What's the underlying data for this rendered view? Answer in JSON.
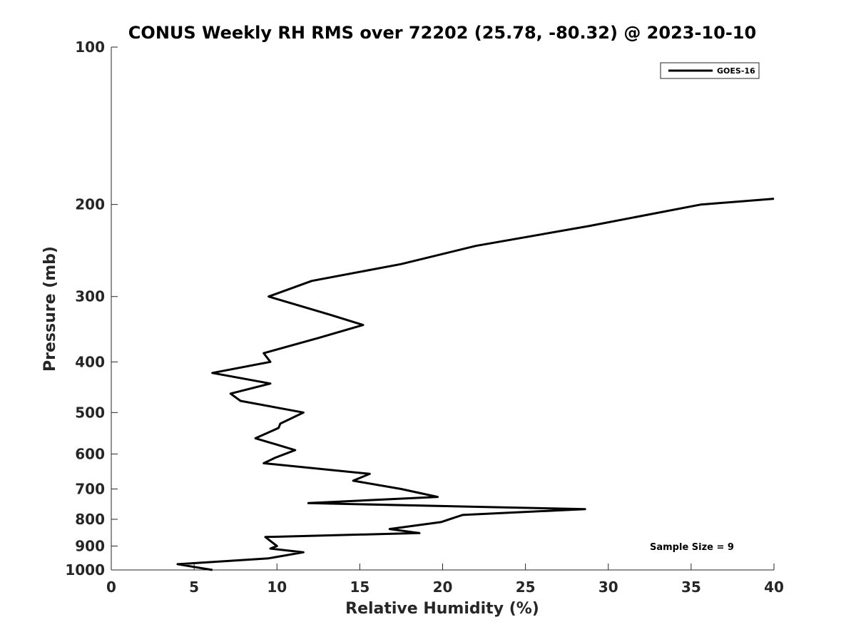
{
  "chart_data": {
    "type": "line",
    "title": "CONUS Weekly RH RMS over 72202 (25.78, -80.32) @ 2023-10-10",
    "xlabel": "Relative Humidity (%)",
    "ylabel": "Pressure (mb)",
    "xlim": [
      0,
      40
    ],
    "ylim": [
      100,
      1000
    ],
    "y_scale": "log",
    "y_reversed": true,
    "x_ticks": [
      0,
      5,
      10,
      15,
      20,
      25,
      30,
      35,
      40
    ],
    "y_ticks": [
      100,
      200,
      300,
      400,
      500,
      600,
      700,
      800,
      900,
      1000
    ],
    "grid": false,
    "legend_position": "top-right",
    "series": [
      {
        "name": "GOES-16",
        "color": "#000000",
        "x": [
          6.1,
          4.0,
          9.5,
          11.6,
          9.6,
          10.0,
          9.7,
          9.3,
          18.6,
          16.8,
          19.9,
          21.2,
          28.6,
          11.9,
          19.7,
          17.5,
          14.6,
          15.6,
          9.2,
          9.9,
          11.1,
          8.7,
          10.1,
          10.2,
          11.6,
          7.8,
          7.2,
          9.6,
          6.1,
          9.6,
          9.2,
          12.5,
          15.2,
          13.2,
          9.5,
          12.1,
          17.5,
          22.0,
          28.8,
          35.6,
          40.0
        ],
        "y": [
          1000,
          975,
          950,
          925,
          910,
          900,
          885,
          865,
          850,
          835,
          810,
          785,
          765,
          745,
          725,
          700,
          675,
          655,
          625,
          610,
          590,
          560,
          535,
          525,
          500,
          475,
          460,
          440,
          420,
          400,
          385,
          360,
          340,
          325,
          300,
          280,
          260,
          240,
          220,
          200,
          195
        ]
      }
    ],
    "annotations": [
      {
        "text": "Sample Size = 9"
      }
    ]
  }
}
